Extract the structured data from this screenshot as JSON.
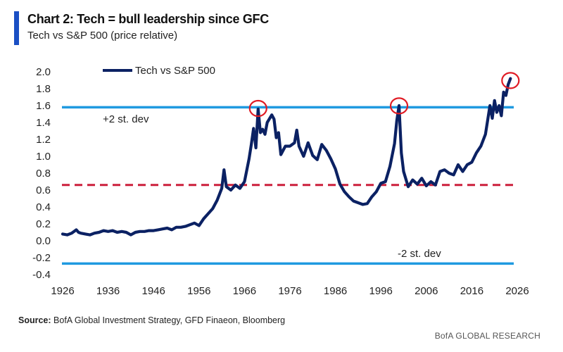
{
  "header": {
    "title": "Chart 2: Tech = bull leadership since GFC",
    "subtitle": "Tech vs S&P 500 (price relative)"
  },
  "footer": {
    "source_label": "Source:",
    "source_text": "BofA Global Investment Strategy, GFD Finaeon, Bloomberg",
    "brand": "BofA GLOBAL RESEARCH"
  },
  "colors": {
    "series": "#0b2163",
    "plus_minus_sd": "#1f9ae0",
    "mean": "#cc1f3c",
    "highlight_circle": "#e01b24",
    "title_bar": "#1a4fc4"
  },
  "chart_data": {
    "type": "line",
    "title": "Chart 2: Tech = bull leadership since GFC",
    "subtitle": "Tech vs S&P 500 (price relative)",
    "xlabel": "",
    "ylabel": "",
    "xlim": [
      1926,
      2026
    ],
    "ylim": [
      -0.4,
      2.0
    ],
    "x_ticks": [
      "1926",
      "1936",
      "1946",
      "1956",
      "1966",
      "1976",
      "1986",
      "1996",
      "2006",
      "2016",
      "2026"
    ],
    "y_ticks": [
      "2.0",
      "1.8",
      "1.6",
      "1.4",
      "1.2",
      "1.0",
      "0.8",
      "0.6",
      "0.4",
      "0.2",
      "0.0",
      "-0.2",
      "-0.4"
    ],
    "grid": false,
    "legend": {
      "position": "top-left",
      "entries": [
        "Tech vs S&P 500"
      ]
    },
    "reference_lines": [
      {
        "name": "+2 st. dev",
        "value": 1.58,
        "style": "solid"
      },
      {
        "name": "mean",
        "value": 0.66,
        "style": "dashed"
      },
      {
        "name": "-2 st. dev",
        "value": -0.27,
        "style": "solid"
      }
    ],
    "annotations": [
      {
        "text": "+2 st. dev"
      },
      {
        "text": "-2 st. dev"
      }
    ],
    "highlights": [
      {
        "x": 1969,
        "y": 1.55
      },
      {
        "x": 2000,
        "y": 1.58
      },
      {
        "x": 2024.5,
        "y": 1.88
      }
    ],
    "series": [
      {
        "name": "Tech vs S&P 500",
        "x": [
          1926,
          1927,
          1928,
          1929,
          1929.5,
          1930,
          1931,
          1932,
          1933,
          1934,
          1935,
          1936,
          1937,
          1938,
          1939,
          1940,
          1941,
          1942,
          1943,
          1944,
          1945,
          1946,
          1947,
          1948,
          1949,
          1950,
          1951,
          1952,
          1953,
          1954,
          1955,
          1956,
          1957,
          1958,
          1959,
          1960,
          1961,
          1961.5,
          1962,
          1962.5,
          1963,
          1964,
          1965,
          1966,
          1967,
          1967.5,
          1968,
          1968.5,
          1969,
          1969.5,
          1970,
          1970.5,
          1971,
          1972,
          1972.5,
          1973,
          1973.5,
          1974,
          1975,
          1976,
          1977,
          1977.5,
          1978,
          1979,
          1980,
          1981,
          1982,
          1983,
          1984,
          1985,
          1986,
          1987,
          1988,
          1989,
          1990,
          1991,
          1992,
          1993,
          1994,
          1995,
          1996,
          1997,
          1998,
          1999,
          1999.5,
          2000,
          2000.5,
          2001,
          2002,
          2003,
          2004,
          2005,
          2006,
          2007,
          2008,
          2009,
          2010,
          2011,
          2012,
          2013,
          2014,
          2015,
          2016,
          2017,
          2018,
          2019,
          2020,
          2020.5,
          2021,
          2021.5,
          2022,
          2022.5,
          2023,
          2023.5,
          2024,
          2024.5
        ],
        "y": [
          0.08,
          0.07,
          0.09,
          0.13,
          0.1,
          0.09,
          0.08,
          0.07,
          0.09,
          0.1,
          0.12,
          0.11,
          0.12,
          0.1,
          0.11,
          0.1,
          0.07,
          0.1,
          0.11,
          0.11,
          0.12,
          0.12,
          0.13,
          0.14,
          0.15,
          0.13,
          0.16,
          0.16,
          0.17,
          0.19,
          0.21,
          0.18,
          0.26,
          0.32,
          0.38,
          0.48,
          0.62,
          0.84,
          0.64,
          0.62,
          0.6,
          0.66,
          0.62,
          0.7,
          0.97,
          1.14,
          1.33,
          1.1,
          1.56,
          1.28,
          1.32,
          1.26,
          1.4,
          1.49,
          1.44,
          1.22,
          1.28,
          1.02,
          1.12,
          1.12,
          1.16,
          1.31,
          1.12,
          1.0,
          1.16,
          1.01,
          0.96,
          1.14,
          1.07,
          0.97,
          0.85,
          0.67,
          0.58,
          0.52,
          0.47,
          0.45,
          0.43,
          0.44,
          0.52,
          0.58,
          0.68,
          0.7,
          0.88,
          1.15,
          1.42,
          1.6,
          1.04,
          0.82,
          0.64,
          0.72,
          0.67,
          0.74,
          0.65,
          0.7,
          0.66,
          0.82,
          0.84,
          0.8,
          0.78,
          0.9,
          0.82,
          0.9,
          0.93,
          1.04,
          1.12,
          1.26,
          1.6,
          1.45,
          1.66,
          1.52,
          1.6,
          1.48,
          1.76,
          1.72,
          1.85,
          1.92
        ]
      }
    ]
  }
}
